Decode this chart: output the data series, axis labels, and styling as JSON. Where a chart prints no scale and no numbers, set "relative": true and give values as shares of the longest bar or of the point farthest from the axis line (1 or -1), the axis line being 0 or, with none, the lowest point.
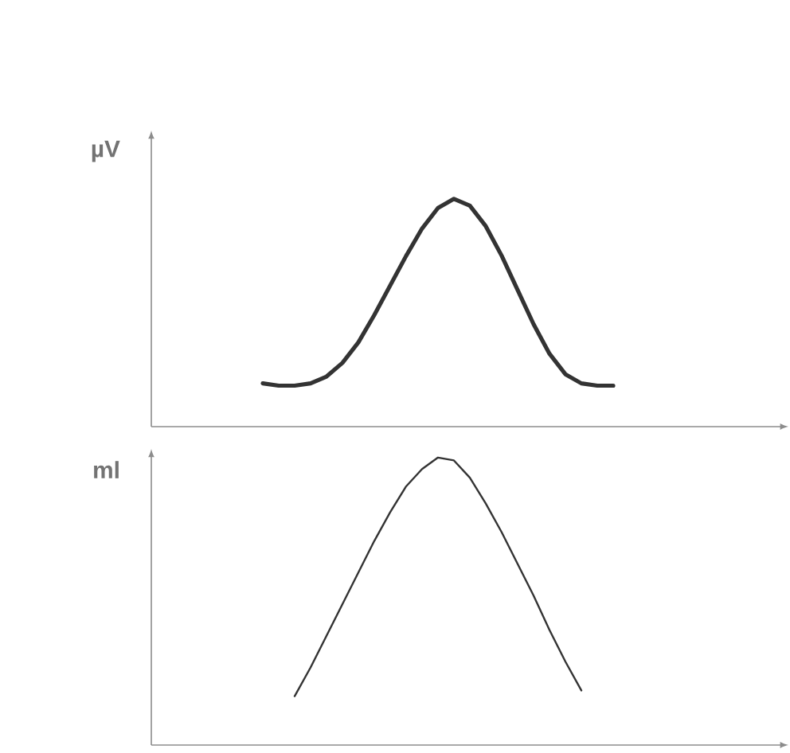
{
  "chart_data": [
    {
      "type": "line",
      "ylabel": "µV",
      "relative": true,
      "tick_labels": false,
      "marker": "none",
      "categories": [
        null,
        null,
        null,
        null,
        null,
        null,
        null,
        null,
        null,
        null,
        null,
        null,
        null,
        null,
        null,
        null,
        null,
        null,
        null,
        null,
        null,
        null,
        null,
        null,
        null,
        null,
        null,
        null,
        null,
        null,
        null,
        null,
        null,
        null,
        null,
        null,
        null,
        null,
        null,
        null,
        null
      ],
      "series": [
        {
          "color": "#333333",
          "values": [
            null,
            null,
            null,
            null,
            null,
            null,
            null,
            0.19,
            0.18,
            0.18,
            0.19,
            0.22,
            0.28,
            0.37,
            0.49,
            0.62,
            0.75,
            0.87,
            0.96,
            1.0,
            0.97,
            0.88,
            0.75,
            0.6,
            0.45,
            0.32,
            0.23,
            0.19,
            0.18,
            0.18,
            null,
            null,
            null,
            null,
            null,
            null,
            null,
            null,
            null,
            null,
            null
          ]
        }
      ]
    },
    {
      "type": "line",
      "ylabel": "ml",
      "relative": true,
      "tick_labels": false,
      "marker": "none",
      "categories": [
        null,
        null,
        null,
        null,
        null,
        null,
        null,
        null,
        null,
        null,
        null,
        null,
        null,
        null,
        null,
        null,
        null,
        null,
        null,
        null,
        null,
        null,
        null,
        null,
        null,
        null,
        null,
        null,
        null,
        null,
        null,
        null,
        null,
        null,
        null,
        null,
        null,
        null,
        null,
        null,
        null
      ],
      "series": [
        {
          "color": "#333333",
          "values": [
            null,
            null,
            null,
            null,
            null,
            null,
            null,
            null,
            null,
            0.17,
            0.27,
            0.38,
            0.49,
            0.6,
            0.71,
            0.81,
            0.9,
            0.96,
            1.0,
            0.99,
            0.93,
            0.84,
            0.74,
            0.63,
            0.52,
            0.4,
            0.29,
            0.19,
            null,
            null,
            null,
            null,
            null,
            null,
            null,
            null,
            null,
            null,
            null,
            null,
            null
          ]
        }
      ]
    }
  ]
}
